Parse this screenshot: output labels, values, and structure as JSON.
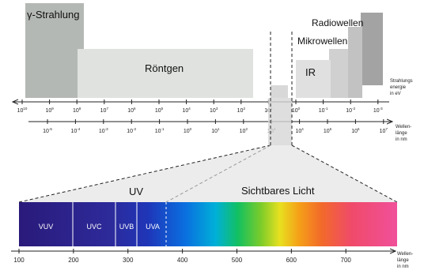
{
  "regions": {
    "gamma": "γ-Strahlung",
    "xray": "Röntgen",
    "radio": "Radiowellen",
    "micro": "Mikrowellen",
    "ir": "IR",
    "uv": "UV",
    "visible": "Sichtbares Licht"
  },
  "energy_axis": {
    "label_lines": [
      "Strahlungs",
      "energie",
      "in eV"
    ],
    "ticks": [
      {
        "base": "10",
        "exp": "10"
      },
      {
        "base": "10",
        "exp": "9"
      },
      {
        "base": "10",
        "exp": "8"
      },
      {
        "base": "10",
        "exp": "7"
      },
      {
        "base": "10",
        "exp": "6"
      },
      {
        "base": "10",
        "exp": "5"
      },
      {
        "base": "10",
        "exp": "4"
      },
      {
        "base": "10",
        "exp": "3"
      },
      {
        "base": "10",
        "exp": "2"
      },
      {
        "base": "10",
        "exp": "1"
      },
      {
        "base": "10",
        "exp": "0"
      },
      {
        "base": "10",
        "exp": "-1"
      },
      {
        "base": "10",
        "exp": "-2"
      },
      {
        "base": "10",
        "exp": "-3"
      }
    ]
  },
  "wavelength_axis": {
    "label_lines": [
      "Wellen-",
      "länge",
      "in nm"
    ],
    "ticks": [
      {
        "base": "10",
        "exp": "-5"
      },
      {
        "base": "10",
        "exp": "-4"
      },
      {
        "base": "10",
        "exp": "-3"
      },
      {
        "base": "10",
        "exp": "-2"
      },
      {
        "base": "10",
        "exp": "-1"
      },
      {
        "base": "10",
        "exp": "0"
      },
      {
        "base": "10",
        "exp": "1"
      },
      {
        "base": "10",
        "exp": "2"
      },
      {
        "base": "10",
        "exp": "3"
      },
      {
        "base": "10",
        "exp": "4"
      },
      {
        "base": "10",
        "exp": "5"
      },
      {
        "base": "10",
        "exp": "6"
      },
      {
        "base": "10",
        "exp": "7"
      }
    ]
  },
  "uv_bands": [
    "VUV",
    "UVC",
    "UVB",
    "UVA"
  ],
  "nm_axis": {
    "label_lines": [
      "Wellen-",
      "länge",
      "in nm"
    ],
    "ticks": [
      "100",
      "200",
      "300",
      "400",
      "500",
      "600",
      "700"
    ]
  },
  "colors": {
    "gamma": "#b4b8b4",
    "xray": "#dfe2df",
    "radio": "#a3a3a3",
    "micro": "#c2c2c2",
    "ir": "#e0e0e0",
    "uv_dark": "#3a1c8c",
    "visible_red": "#f0407a"
  }
}
